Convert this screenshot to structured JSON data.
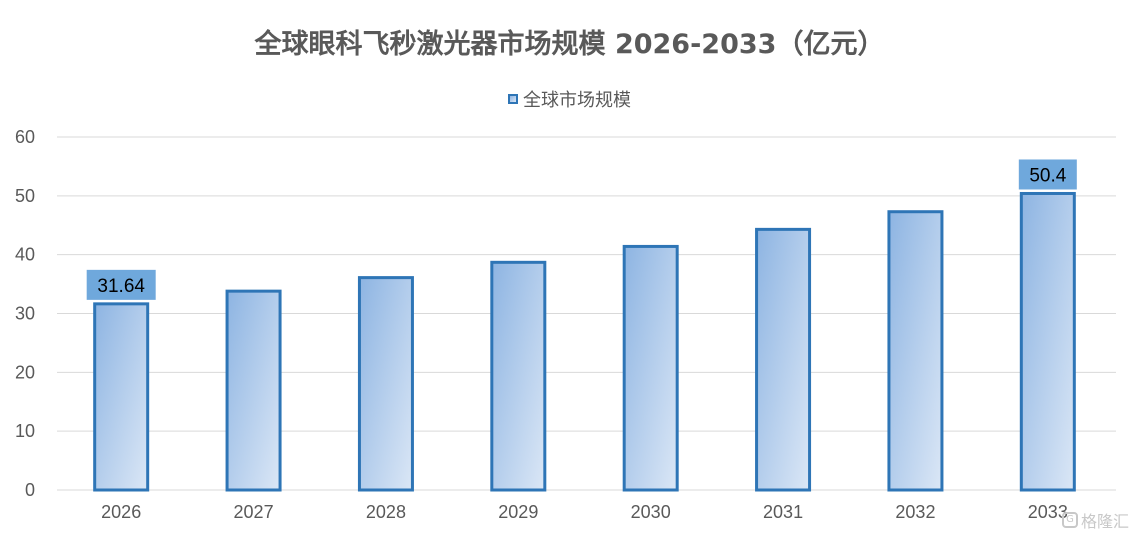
{
  "chart_data": {
    "type": "bar",
    "title": "全球眼科飞秒激光器市场规模 2026-2033（亿元）",
    "xlabel": "",
    "ylabel": "",
    "categories": [
      "2026",
      "2027",
      "2028",
      "2029",
      "2030",
      "2031",
      "2032",
      "2033"
    ],
    "series": [
      {
        "name": "全球市场规模",
        "values": [
          31.64,
          33.8,
          36.1,
          38.7,
          41.4,
          44.3,
          47.3,
          50.4
        ]
      }
    ],
    "data_labels": [
      {
        "category": "2026",
        "text": "31.64"
      },
      {
        "category": "2033",
        "text": "50.4"
      }
    ],
    "ylim": [
      0,
      60
    ],
    "yticks": [
      "0",
      "10",
      "20",
      "30",
      "40",
      "50",
      "60"
    ],
    "grid": true,
    "legend_position": "top-center",
    "colors": {
      "bar_fill_start": "#8db4e2",
      "bar_fill_end": "#dbe7f6",
      "bar_border": "#2e75b6",
      "label_box": "#6fa8dc",
      "gridline": "#d9d9d9"
    }
  },
  "watermark": {
    "icon": "gelonghui-logo-icon",
    "text": "格隆汇"
  }
}
